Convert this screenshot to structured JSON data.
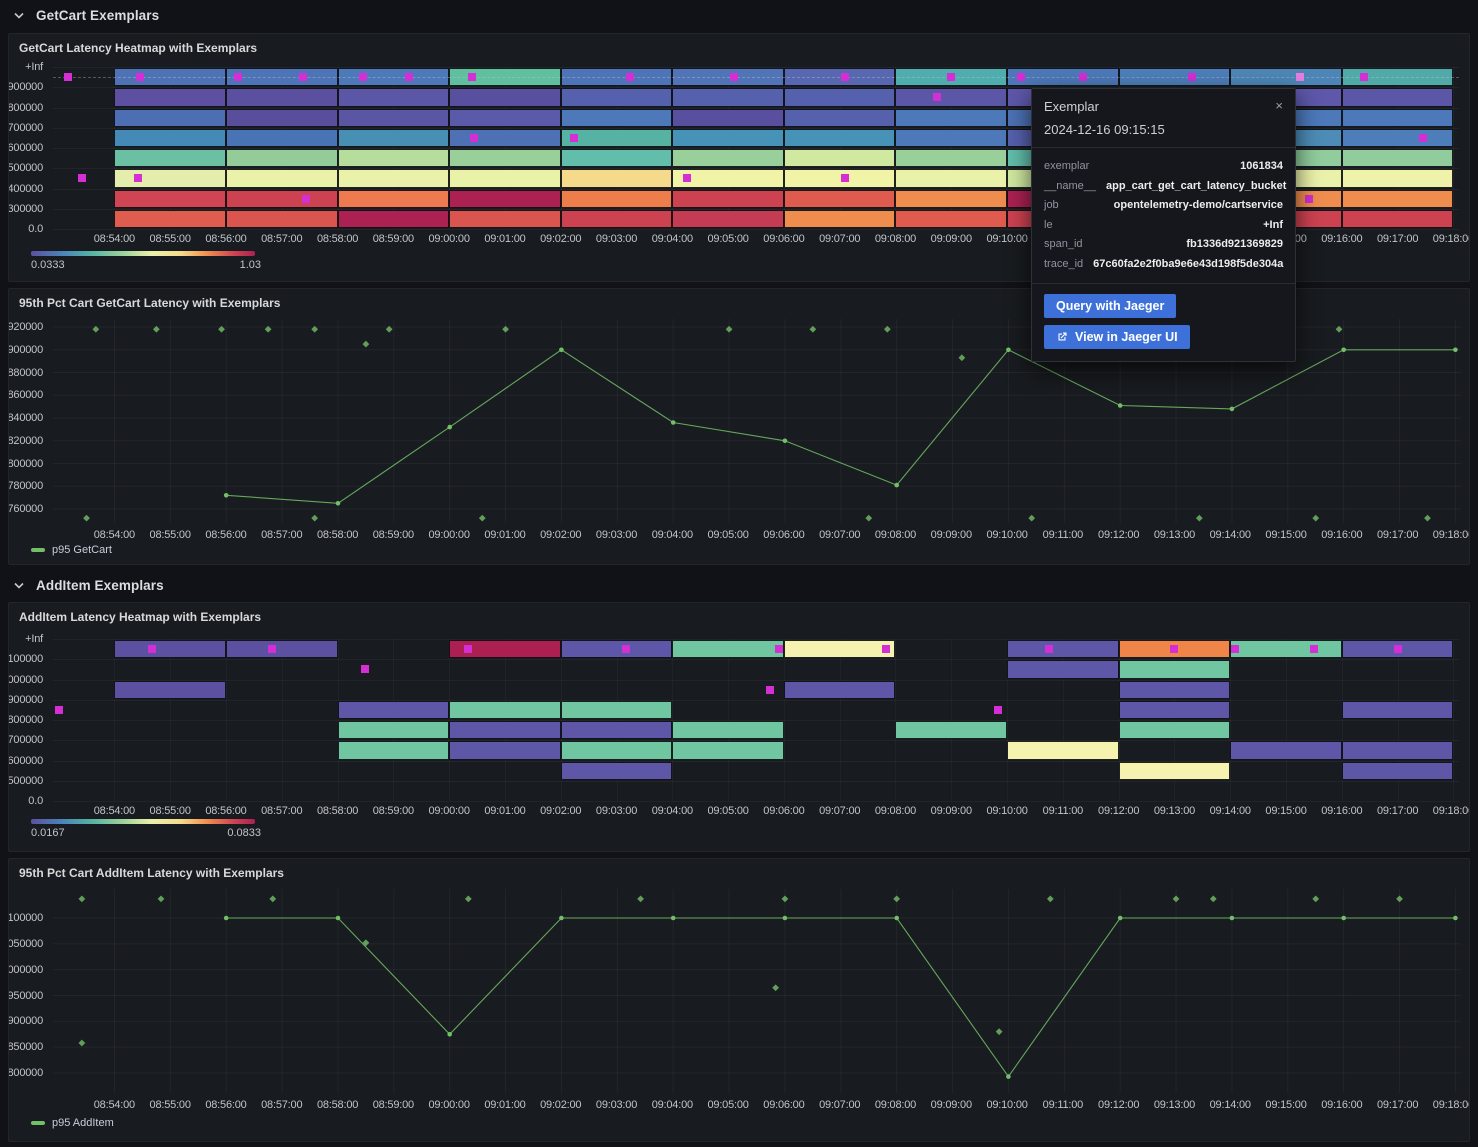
{
  "sections": [
    {
      "title": "GetCart Exemplars"
    },
    {
      "title": "AddItem Exemplars"
    }
  ],
  "time_axis": {
    "ticks": [
      "08:54:00",
      "08:55:00",
      "08:56:00",
      "08:57:00",
      "08:58:00",
      "08:59:00",
      "09:00:00",
      "09:01:00",
      "09:02:00",
      "09:03:00",
      "09:04:00",
      "09:05:00",
      "09:06:00",
      "09:07:00",
      "09:08:00",
      "09:09:00",
      "09:10:00",
      "09:11:00",
      "09:12:00",
      "09:13:00",
      "09:14:00",
      "09:15:00",
      "09:16:00",
      "09:17:00",
      "09:18:00"
    ]
  },
  "colors": {
    "accent_green": "#73bf69",
    "exemplar_magenta": "#d42ed4",
    "exemplar_selected": "#e77de0",
    "button_blue": "#3d71d9",
    "panel_bg": "#181b1f",
    "page_bg": "#111217"
  },
  "tooltip": {
    "title": "Exemplar",
    "timestamp": "2024-12-16 09:15:15",
    "close_icon": "×",
    "fields": [
      {
        "label": "exemplar",
        "value": "1061834"
      },
      {
        "label": "__name__",
        "value": "app_cart_get_cart_latency_bucket"
      },
      {
        "label": "job",
        "value": "opentelemetry-demo/cartservice"
      },
      {
        "label": "le",
        "value": "+Inf"
      },
      {
        "label": "span_id",
        "value": "fb1336d921369829"
      },
      {
        "label": "trace_id",
        "value": "67c60fa2e2f0ba9e6e43d198f5de304a"
      }
    ],
    "buttons": [
      {
        "label": "Query with Jaeger"
      },
      {
        "label": "View in Jaeger UI",
        "icon": "external-link"
      }
    ]
  },
  "chart_data": [
    {
      "id": "hm_getcart",
      "type": "heatmap",
      "title": "GetCart Latency Heatmap with Exemplars",
      "y_labels": [
        "+Inf",
        "900000",
        "800000",
        "700000",
        "600000",
        "500000",
        "400000",
        "300000",
        "0.0"
      ],
      "col_start_times": [
        "08:54:00",
        "08:56:00",
        "08:58:00",
        "09:00:00",
        "09:02:00",
        "09:04:00",
        "09:06:00",
        "09:08:00",
        "09:10:00",
        "09:12:00",
        "09:14:00",
        "09:16:00"
      ],
      "col_span_minutes": 2,
      "cell_rows": [
        [
          "#4f72b4",
          "#4d74b6",
          "#4d79b8",
          "#5fbf9f",
          "#4d74b6",
          "#5074b6",
          "#5767b0",
          "#4fadad",
          "#4d78b8",
          "#4d7eba",
          "#4d86b6",
          "#52aaa8"
        ],
        [
          "#5e50a0",
          "#5b50a0",
          "#5c56a6",
          "#584f9f",
          "#5661ae",
          "#5661ae",
          "#5661ae",
          "#5b56a6",
          "#5e57aa",
          "#5b56a6",
          "#5e57aa",
          "#5b56a6"
        ],
        [
          "#4d6eb2",
          "#594e9c",
          "#5b56a4",
          "#5b59aa",
          "#4d78ba",
          "#584f9f",
          "#5661ae",
          "#4d78ba",
          "#4d71b4",
          "#4d78ba",
          "#4d78ba",
          "#4d78ba"
        ],
        [
          "#458ab6",
          "#4873b4",
          "#4790b4",
          "#4d71b4",
          "#56b3a3",
          "#4792b7",
          "#4792b7",
          "#4d78ba",
          "#5661ae",
          "#4d8cb7",
          "#4d8cb7",
          "#4d7eba"
        ],
        [
          "#6bbfa3",
          "#94cc99",
          "#b7dd9d",
          "#98cf9b",
          "#62bdab",
          "#98cf9b",
          "#d0e8a0",
          "#98cf9b",
          "#62bdab",
          "#90cc9c",
          "#90cc9c",
          "#90cc9c"
        ],
        [
          "#e4edac",
          "#eaf1a9",
          "#eaf1a9",
          "#eaf1a9",
          "#f6da8c",
          "#f1f3a6",
          "#f1f3a6",
          "#eaf1a9",
          "#d0e8a0",
          "#eaf1a9",
          "#eaf1a9",
          "#eff3a9"
        ],
        [
          "#d04553",
          "#cd4251",
          "#ed7b4f",
          "#ab2151",
          "#ee7d4c",
          "#cd4251",
          "#de5b4e",
          "#ef8d4e",
          "#ab2151",
          "#ef8d4e",
          "#ef8d4e",
          "#ef8d4e"
        ],
        [
          "#de5d4f",
          "#da5550",
          "#ab2151",
          "#da5550",
          "#cd4251",
          "#c33c53",
          "#ef8d4e",
          "#de5b4e",
          "#cd4251",
          "#da5550",
          "#cd4251",
          "#cd4251"
        ]
      ],
      "has_exemplar_guide": true,
      "exemplars": [
        {
          "t": "08:53:10",
          "row": 0
        },
        {
          "t": "08:54:28",
          "row": 0
        },
        {
          "t": "08:56:13",
          "row": 0
        },
        {
          "t": "08:57:23",
          "row": 0
        },
        {
          "t": "08:58:27",
          "row": 0
        },
        {
          "t": "08:59:17",
          "row": 0
        },
        {
          "t": "09:00:25",
          "row": 0
        },
        {
          "t": "09:03:15",
          "row": 0
        },
        {
          "t": "09:05:06",
          "row": 0
        },
        {
          "t": "09:07:06",
          "row": 0
        },
        {
          "t": "09:09:00",
          "row": 0
        },
        {
          "t": "09:10:15",
          "row": 0
        },
        {
          "t": "09:11:22",
          "row": 0
        },
        {
          "t": "09:13:19",
          "row": 0
        },
        {
          "t": "09:15:15",
          "row": 0,
          "selected": true
        },
        {
          "t": "09:16:24",
          "row": 0
        },
        {
          "t": "08:53:25",
          "row": 5
        },
        {
          "t": "08:54:25",
          "row": 5
        },
        {
          "t": "08:57:26",
          "row": 6
        },
        {
          "t": "09:00:27",
          "row": 3
        },
        {
          "t": "09:02:14",
          "row": 3
        },
        {
          "t": "09:04:16",
          "row": 5
        },
        {
          "t": "09:07:06",
          "row": 5
        },
        {
          "t": "09:08:45",
          "row": 1
        },
        {
          "t": "09:15:25",
          "row": 6
        },
        {
          "t": "09:17:27",
          "row": 3
        }
      ],
      "legend": {
        "min": "0.0333",
        "max": "1.03"
      }
    },
    {
      "id": "line_getcart",
      "type": "line",
      "title": "95th Pct Cart GetCart Latency with Exemplars",
      "y_ticks": [
        "760000",
        "780000",
        "800000",
        "820000",
        "840000",
        "860000",
        "880000",
        "900000",
        "920000"
      ],
      "series": [
        {
          "name": "p95 GetCart",
          "color": "#73bf69",
          "points": [
            {
              "t": "08:56:00",
              "v": 772000
            },
            {
              "t": "08:58:00",
              "v": 765000
            },
            {
              "t": "09:00:00",
              "v": 832000
            },
            {
              "t": "09:02:00",
              "v": 900000
            },
            {
              "t": "09:04:00",
              "v": 836000
            },
            {
              "t": "09:06:00",
              "v": 820000
            },
            {
              "t": "09:08:00",
              "v": 781000
            },
            {
              "t": "09:10:00",
              "v": 900000
            },
            {
              "t": "09:12:00",
              "v": 851000
            },
            {
              "t": "09:14:00",
              "v": 848000
            },
            {
              "t": "09:16:00",
              "v": 900000
            },
            {
              "t": "09:18:00",
              "v": 900000
            }
          ]
        }
      ],
      "exemplars": [
        {
          "t": "08:53:40",
          "v": 918000
        },
        {
          "t": "08:54:45",
          "v": 918000
        },
        {
          "t": "08:55:55",
          "v": 918000
        },
        {
          "t": "08:56:45",
          "v": 918000
        },
        {
          "t": "08:57:35",
          "v": 918000
        },
        {
          "t": "08:58:55",
          "v": 918000
        },
        {
          "t": "09:01:00",
          "v": 918000
        },
        {
          "t": "09:05:00",
          "v": 918000
        },
        {
          "t": "09:06:30",
          "v": 918000
        },
        {
          "t": "09:07:50",
          "v": 918000
        },
        {
          "t": "09:12:30",
          "v": 918000
        },
        {
          "t": "09:15:55",
          "v": 918000
        },
        {
          "t": "08:58:30",
          "v": 905000
        },
        {
          "t": "09:09:10",
          "v": 893000
        },
        {
          "t": "08:53:30",
          "v": 752000
        },
        {
          "t": "08:57:35",
          "v": 752000
        },
        {
          "t": "09:00:35",
          "v": 752000
        },
        {
          "t": "09:07:30",
          "v": 752000
        },
        {
          "t": "09:10:25",
          "v": 752000
        },
        {
          "t": "09:13:25",
          "v": 752000
        },
        {
          "t": "09:15:30",
          "v": 752000
        },
        {
          "t": "09:17:30",
          "v": 752000
        }
      ]
    },
    {
      "id": "hm_additem",
      "type": "heatmap",
      "title": "AddItem Latency Heatmap with Exemplars",
      "y_labels": [
        "+Inf",
        "1100000",
        "1000000",
        "900000",
        "800000",
        "700000",
        "600000",
        "500000",
        "0.0"
      ],
      "col_start_times": [
        "08:54:00",
        "08:56:00",
        "08:58:00",
        "09:00:00",
        "09:02:00",
        "09:04:00",
        "09:06:00",
        "09:08:00",
        "09:10:00",
        "09:12:00",
        "09:14:00",
        "09:16:00"
      ],
      "col_span_minutes": 2,
      "cell_rows": [
        [
          "#5c51a1",
          "#5c51a1",
          null,
          "#ab2050",
          "#5e56a7",
          "#70c6a1",
          "#f6f3b1",
          null,
          "#5e56a7",
          "#f08549",
          "#70c6a1",
          "#5e56a7"
        ],
        [
          null,
          null,
          null,
          null,
          null,
          null,
          null,
          null,
          "#5e56a7",
          "#70c6a1",
          null,
          null
        ],
        [
          "#5c51a1",
          null,
          null,
          null,
          null,
          null,
          "#5e56a7",
          null,
          null,
          "#5e56a7",
          null,
          null
        ],
        [
          null,
          null,
          "#5e56a7",
          "#70c6a1",
          "#70c6a1",
          null,
          null,
          null,
          null,
          "#5e56a7",
          null,
          "#5e56a7"
        ],
        [
          null,
          null,
          "#70c6a1",
          "#5e56a7",
          "#5e56a7",
          "#70c6a1",
          null,
          "#70c6a1",
          null,
          "#70c6a1",
          null,
          null
        ],
        [
          null,
          null,
          "#70c6a1",
          "#5e56a7",
          "#70c6a1",
          "#70c6a1",
          null,
          null,
          "#f6f3b1",
          null,
          "#5e56a7",
          "#5e56a7"
        ],
        [
          null,
          null,
          null,
          null,
          "#5e56a7",
          null,
          null,
          null,
          null,
          "#f6f3b1",
          null,
          "#5e56a7"
        ],
        [
          null,
          null,
          null,
          null,
          null,
          null,
          null,
          null,
          null,
          null,
          null,
          null
        ]
      ],
      "has_exemplar_guide": false,
      "exemplars": [
        {
          "t": "08:53:00",
          "row": 3
        },
        {
          "t": "08:54:40",
          "row": 0
        },
        {
          "t": "08:56:50",
          "row": 0
        },
        {
          "t": "08:58:30",
          "row": 1
        },
        {
          "t": "09:00:20",
          "row": 0
        },
        {
          "t": "09:03:10",
          "row": 0
        },
        {
          "t": "09:05:45",
          "row": 2
        },
        {
          "t": "09:05:55",
          "row": 0
        },
        {
          "t": "09:07:50",
          "row": 0
        },
        {
          "t": "09:09:50",
          "row": 3
        },
        {
          "t": "09:10:45",
          "row": 0
        },
        {
          "t": "09:13:00",
          "row": 0
        },
        {
          "t": "09:14:05",
          "row": 0
        },
        {
          "t": "09:15:30",
          "row": 0
        },
        {
          "t": "09:17:00",
          "row": 0
        }
      ],
      "legend": {
        "min": "0.0167",
        "max": "0.0833"
      }
    },
    {
      "id": "line_additem",
      "type": "line",
      "title": "95th Pct Cart AddItem Latency with Exemplars",
      "y_ticks": [
        "800000",
        "850000",
        "900000",
        "950000",
        "1000000",
        "1050000",
        "1100000"
      ],
      "series": [
        {
          "name": "p95 AddItem",
          "color": "#73bf69",
          "points": [
            {
              "t": "08:56:00",
              "v": 1100000
            },
            {
              "t": "08:58:00",
              "v": 1100000
            },
            {
              "t": "09:00:00",
              "v": 875000
            },
            {
              "t": "09:02:00",
              "v": 1100000
            },
            {
              "t": "09:04:00",
              "v": 1100000
            },
            {
              "t": "09:06:00",
              "v": 1100000
            },
            {
              "t": "09:08:00",
              "v": 1100000
            },
            {
              "t": "09:10:00",
              "v": 793000
            },
            {
              "t": "09:12:00",
              "v": 1100000
            },
            {
              "t": "09:14:00",
              "v": 1100000
            },
            {
              "t": "09:16:00",
              "v": 1100000
            },
            {
              "t": "09:18:00",
              "v": 1100000
            }
          ]
        }
      ],
      "exemplars": [
        {
          "t": "08:53:25",
          "v": 1137000
        },
        {
          "t": "08:54:50",
          "v": 1137000
        },
        {
          "t": "08:56:50",
          "v": 1137000
        },
        {
          "t": "09:00:20",
          "v": 1137000
        },
        {
          "t": "09:03:25",
          "v": 1137000
        },
        {
          "t": "09:06:00",
          "v": 1137000
        },
        {
          "t": "09:08:00",
          "v": 1137000
        },
        {
          "t": "09:10:45",
          "v": 1137000
        },
        {
          "t": "09:13:00",
          "v": 1137000
        },
        {
          "t": "09:13:40",
          "v": 1137000
        },
        {
          "t": "09:15:30",
          "v": 1137000
        },
        {
          "t": "09:17:00",
          "v": 1137000
        },
        {
          "t": "08:53:25",
          "v": 858000
        },
        {
          "t": "08:58:30",
          "v": 1052000
        },
        {
          "t": "09:05:50",
          "v": 965000
        },
        {
          "t": "09:09:50",
          "v": 880000
        }
      ]
    }
  ]
}
